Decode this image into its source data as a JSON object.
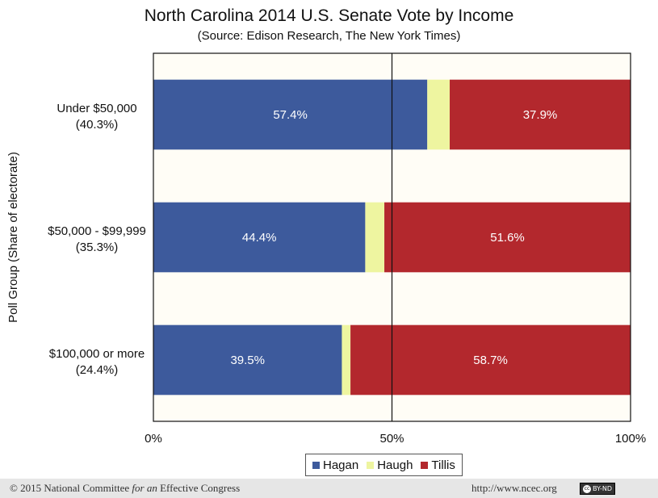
{
  "chart_data": {
    "type": "bar",
    "orientation": "horizontal",
    "stacked": true,
    "title": "North Carolina 2014 U.S. Senate Vote by Income",
    "subtitle": "(Source: Edison Research, The New York Times)",
    "ylabel": "Poll Group (Share of electorate)",
    "xlabel": "",
    "xlim": [
      0,
      100
    ],
    "x_ticks": [
      "0%",
      "50%",
      "100%"
    ],
    "grid": true,
    "legend_position": "bottom",
    "categories": [
      {
        "line1": "Under $50,000",
        "line2": "(40.3%)"
      },
      {
        "line1": "$50,000 - $99,999",
        "line2": "(35.3%)"
      },
      {
        "line1": "$100,000 or more",
        "line2": "(24.4%)"
      }
    ],
    "series": [
      {
        "name": "Hagan",
        "color": "#3d5a9c",
        "values": [
          57.4,
          44.4,
          39.5
        ],
        "labels": [
          "57.4%",
          "44.4%",
          "39.5%"
        ]
      },
      {
        "name": "Haugh",
        "color": "#eef5a0",
        "values": [
          4.7,
          4.0,
          1.8
        ],
        "labels": [
          "",
          "",
          ""
        ]
      },
      {
        "name": "Tillis",
        "color": "#b3282d",
        "values": [
          37.9,
          51.6,
          58.7
        ],
        "labels": [
          "37.9%",
          "51.6%",
          "58.7%"
        ]
      }
    ]
  },
  "footer": {
    "copyright": "© 2015 National Committee ",
    "copyright_italic": "for an",
    "copyright_end": " Effective Congress",
    "url": "http://www.ncec.org",
    "badge": "BY-ND",
    "badge_icon": "cc"
  }
}
